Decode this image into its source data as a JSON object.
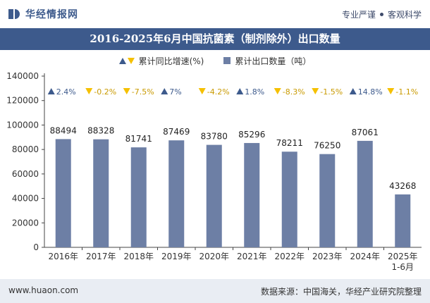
{
  "header": {
    "logo_text": "华经情报网",
    "slogan_left": "专业严谨",
    "slogan_right": "客观科学"
  },
  "title": "2016-2025年6月中国抗菌素（制剂除外）出口数量",
  "legend": {
    "growth_label": "累计同比增速(%)",
    "volume_label": "累计出口数量（吨）"
  },
  "chart_data": {
    "type": "bar",
    "categories": [
      "2016年",
      "2017年",
      "2018年",
      "2019年",
      "2020年",
      "2021年",
      "2022年",
      "2023年",
      "2024年",
      "2025年1-6月"
    ],
    "series": [
      {
        "name": "累计出口数量（吨）",
        "values": [
          88494,
          88328,
          81741,
          87469,
          83780,
          85296,
          78211,
          76250,
          87061,
          43268
        ]
      },
      {
        "name": "累计同比增速(%)",
        "values": [
          2.4,
          -0.2,
          -7.5,
          7,
          -4.2,
          1.8,
          -8.3,
          -1.5,
          14.8,
          -1.1
        ]
      }
    ],
    "growth_labels": [
      "2.4%",
      "-0.2%",
      "-7.5%",
      "7%",
      "-4.2%",
      "1.8%",
      "-8.3%",
      "-1.5%",
      "14.8%",
      "-1.1%"
    ],
    "ylim": [
      0,
      140000
    ],
    "yticks": [
      0,
      20000,
      40000,
      60000,
      80000,
      100000,
      120000,
      140000
    ],
    "grid": false,
    "legend_position": "top-center"
  },
  "colors": {
    "bar": "#6d7fa5",
    "up": "#3d5a8c",
    "down": "#f5c000",
    "title_bg": "#3d5a8c"
  },
  "footer": {
    "website": "www.huaon.com",
    "source": "数据来源：中国海关，华经产业研究院整理"
  }
}
